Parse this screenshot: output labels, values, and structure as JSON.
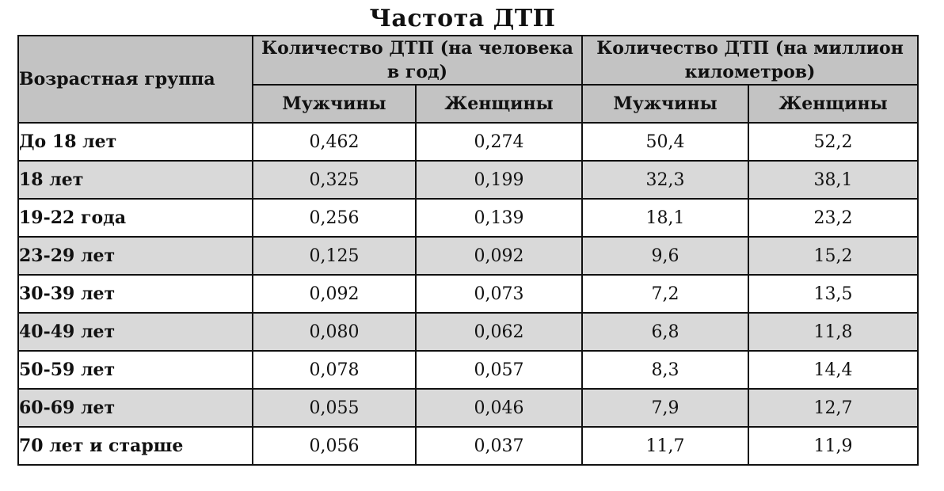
{
  "title": "Частота ДТП",
  "table": {
    "age_header": "Возрастная группа",
    "group_headers": [
      "Количество ДТП (на человека в год)",
      "Количество ДТП (на миллион километров)"
    ],
    "sub_headers": [
      "Мужчины",
      "Женщины",
      "Мужчины",
      "Женщины"
    ],
    "rows": [
      {
        "age": "До 18 лет",
        "values": [
          "0,462",
          "0,274",
          "50,4",
          "52,2"
        ]
      },
      {
        "age": "18 лет",
        "values": [
          "0,325",
          "0,199",
          "32,3",
          "38,1"
        ]
      },
      {
        "age": "19-22 года",
        "values": [
          "0,256",
          "0,139",
          "18,1",
          "23,2"
        ]
      },
      {
        "age": "23-29 лет",
        "values": [
          "0,125",
          "0,092",
          "9,6",
          "15,2"
        ]
      },
      {
        "age": "30-39 лет",
        "values": [
          "0,092",
          "0,073",
          "7,2",
          "13,5"
        ]
      },
      {
        "age": "40-49 лет",
        "values": [
          "0,080",
          "0,062",
          "6,8",
          "11,8"
        ]
      },
      {
        "age": "50-59 лет",
        "values": [
          "0,078",
          "0,057",
          "8,3",
          "14,4"
        ]
      },
      {
        "age": "60-69 лет",
        "values": [
          "0,055",
          "0,046",
          "7,9",
          "12,7"
        ]
      },
      {
        "age": "70 лет и старше",
        "values": [
          "0,056",
          "0,037",
          "11,7",
          "11,9"
        ]
      }
    ]
  },
  "colors": {
    "header_bg": "#c3c3c3",
    "stripe_bg": "#d9d9d9",
    "border": "#111111"
  }
}
